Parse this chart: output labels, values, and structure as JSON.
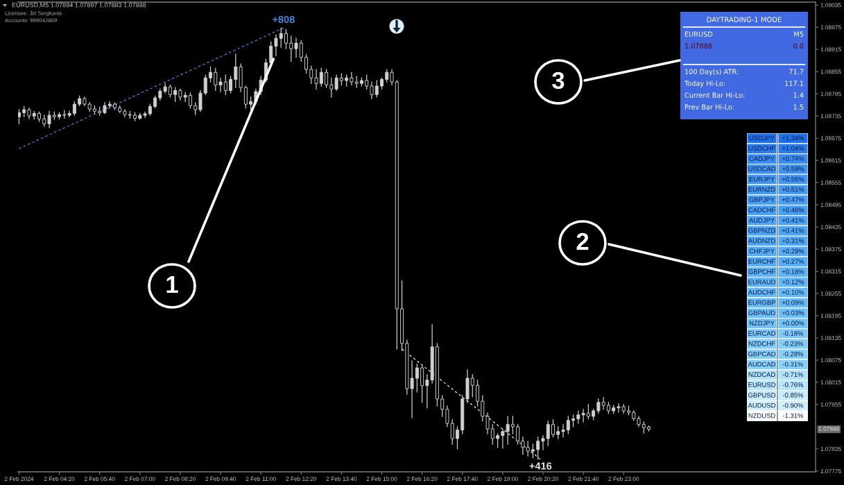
{
  "chart_data": [
    {
      "type": "candlestick",
      "title": "EURUSD,M5 1.07894 1.07897 1.07883 1.07888",
      "subtitle": "Licensee: Jiri Sergkanis\nAccounts: 999042869",
      "color": "#cfcfcf",
      "x": [
        "2024-02-02T03:00",
        "2024-02-02T03:10",
        "2024-02-02T03:20",
        "2024-02-02T03:30",
        "2024-02-02T03:40",
        "2024-02-02T03:50",
        "2024-02-02T04:00",
        "2024-02-02T04:10",
        "2024-02-02T04:20",
        "2024-02-02T04:30",
        "2024-02-02T04:40",
        "2024-02-02T04:50",
        "2024-02-02T05:00",
        "2024-02-02T05:10",
        "2024-02-02T05:20",
        "2024-02-02T05:30",
        "2024-02-02T05:40",
        "2024-02-02T05:50",
        "2024-02-02T06:00",
        "2024-02-02T06:10",
        "2024-02-02T06:20",
        "2024-02-02T06:30",
        "2024-02-02T06:40",
        "2024-02-02T06:50",
        "2024-02-02T07:00",
        "2024-02-02T07:10",
        "2024-02-02T07:20",
        "2024-02-02T07:30",
        "2024-02-02T07:40",
        "2024-02-02T07:50",
        "2024-02-02T08:00",
        "2024-02-02T08:10",
        "2024-02-02T08:20",
        "2024-02-02T08:30",
        "2024-02-02T08:40",
        "2024-02-02T08:50",
        "2024-02-02T09:00",
        "2024-02-02T09:10",
        "2024-02-02T09:20",
        "2024-02-02T09:30",
        "2024-02-02T09:40",
        "2024-02-02T09:50",
        "2024-02-02T10:00",
        "2024-02-02T10:10",
        "2024-02-02T10:20",
        "2024-02-02T10:30",
        "2024-02-02T10:40",
        "2024-02-02T10:50",
        "2024-02-02T11:00",
        "2024-02-02T11:10",
        "2024-02-02T11:20",
        "2024-02-02T11:30",
        "2024-02-02T11:40",
        "2024-02-02T11:50",
        "2024-02-02T12:00",
        "2024-02-02T12:10",
        "2024-02-02T12:20",
        "2024-02-02T12:30",
        "2024-02-02T12:40",
        "2024-02-02T12:50",
        "2024-02-02T13:00",
        "2024-02-02T13:10",
        "2024-02-02T13:20",
        "2024-02-02T13:30",
        "2024-02-02T13:40",
        "2024-02-02T13:50",
        "2024-02-02T14:00",
        "2024-02-02T14:10",
        "2024-02-02T14:20",
        "2024-02-02T14:30",
        "2024-02-02T14:40",
        "2024-02-02T14:50",
        "2024-02-02T15:00",
        "2024-02-02T15:10",
        "2024-02-02T15:20",
        "2024-02-02T15:30",
        "2024-02-02T15:40",
        "2024-02-02T15:50",
        "2024-02-02T16:00",
        "2024-02-02T16:10",
        "2024-02-02T16:20",
        "2024-02-02T16:30",
        "2024-02-02T16:40",
        "2024-02-02T16:50",
        "2024-02-02T17:00",
        "2024-02-02T17:10",
        "2024-02-02T17:20",
        "2024-02-02T17:30",
        "2024-02-02T17:40",
        "2024-02-02T17:50",
        "2024-02-02T18:00",
        "2024-02-02T18:10",
        "2024-02-02T18:20",
        "2024-02-02T18:30",
        "2024-02-02T18:40",
        "2024-02-02T18:50",
        "2024-02-02T19:00",
        "2024-02-02T19:10",
        "2024-02-02T19:20",
        "2024-02-02T19:30",
        "2024-02-02T19:40",
        "2024-02-02T19:50",
        "2024-02-02T20:00",
        "2024-02-02T20:10",
        "2024-02-02T20:20",
        "2024-02-02T20:30",
        "2024-02-02T20:40",
        "2024-02-02T20:50",
        "2024-02-02T21:00",
        "2024-02-02T21:10",
        "2024-02-02T21:20",
        "2024-02-02T21:30",
        "2024-02-02T21:40",
        "2024-02-02T21:50",
        "2024-02-02T22:00",
        "2024-02-02T22:10",
        "2024-02-02T22:20",
        "2024-02-02T22:30",
        "2024-02-02T22:40",
        "2024-02-02T22:50",
        "2024-02-02T23:00",
        "2024-02-02T23:10",
        "2024-02-02T23:20",
        "2024-02-02T23:30",
        "2024-02-02T23:40",
        "2024-02-02T23:50"
      ],
      "ohlc": [
        [
          1.08733,
          1.08752,
          1.08714,
          1.08744
        ],
        [
          1.08744,
          1.08761,
          1.08733,
          1.08752
        ],
        [
          1.08752,
          1.08756,
          1.08727,
          1.08735
        ],
        [
          1.08735,
          1.08748,
          1.08726,
          1.08742
        ],
        [
          1.08742,
          1.08746,
          1.0872,
          1.08727
        ],
        [
          1.08727,
          1.08737,
          1.08707,
          1.08714
        ],
        [
          1.08714,
          1.08748,
          1.08703,
          1.08737
        ],
        [
          1.08737,
          1.08746,
          1.08726,
          1.08733
        ],
        [
          1.08733,
          1.08744,
          1.08727,
          1.08739
        ],
        [
          1.08739,
          1.0875,
          1.08729,
          1.08737
        ],
        [
          1.08737,
          1.08748,
          1.08733,
          1.08742
        ],
        [
          1.08742,
          1.08774,
          1.08737,
          1.08767
        ],
        [
          1.08767,
          1.08789,
          1.08763,
          1.08782
        ],
        [
          1.08782,
          1.08786,
          1.08763,
          1.08767
        ],
        [
          1.08767,
          1.08771,
          1.08748,
          1.08754
        ],
        [
          1.08754,
          1.08763,
          1.08741,
          1.08748
        ],
        [
          1.08748,
          1.08759,
          1.08737,
          1.08744
        ],
        [
          1.08744,
          1.08771,
          1.08741,
          1.08763
        ],
        [
          1.08763,
          1.08774,
          1.08756,
          1.08767
        ],
        [
          1.08767,
          1.08771,
          1.08752,
          1.08757
        ],
        [
          1.08757,
          1.08763,
          1.08744,
          1.08748
        ],
        [
          1.08748,
          1.08752,
          1.08733,
          1.08739
        ],
        [
          1.08739,
          1.08748,
          1.08729,
          1.08737
        ],
        [
          1.08737,
          1.08744,
          1.08722,
          1.08729
        ],
        [
          1.08729,
          1.08742,
          1.08726,
          1.08737
        ],
        [
          1.08737,
          1.08746,
          1.08731,
          1.08741
        ],
        [
          1.08741,
          1.08767,
          1.08737,
          1.08761
        ],
        [
          1.08761,
          1.08789,
          1.08757,
          1.08784
        ],
        [
          1.08784,
          1.08808,
          1.08778,
          1.08802
        ],
        [
          1.08802,
          1.08823,
          1.08797,
          1.08814
        ],
        [
          1.08814,
          1.08819,
          1.08786,
          1.08793
        ],
        [
          1.08793,
          1.08812,
          1.08774,
          1.08804
        ],
        [
          1.08804,
          1.08808,
          1.08778,
          1.08786
        ],
        [
          1.08786,
          1.08799,
          1.08774,
          1.08791
        ],
        [
          1.08791,
          1.08797,
          1.08756,
          1.08763
        ],
        [
          1.08763,
          1.08771,
          1.08739,
          1.08752
        ],
        [
          1.08752,
          1.08804,
          1.08748,
          1.08797
        ],
        [
          1.08797,
          1.08846,
          1.08793,
          1.08838
        ],
        [
          1.08838,
          1.08868,
          1.08827,
          1.08853
        ],
        [
          1.08853,
          1.08864,
          1.08804,
          1.08819
        ],
        [
          1.08819,
          1.08838,
          1.08801,
          1.08827
        ],
        [
          1.08827,
          1.08846,
          1.08793,
          1.08804
        ],
        [
          1.08804,
          1.08842,
          1.08797,
          1.08834
        ],
        [
          1.08834,
          1.08902,
          1.08812,
          1.08868
        ],
        [
          1.08868,
          1.08876,
          1.08801,
          1.08812
        ],
        [
          1.08812,
          1.08816,
          1.08756,
          1.08767
        ],
        [
          1.08767,
          1.08786,
          1.08748,
          1.08774
        ],
        [
          1.08774,
          1.08808,
          1.08767,
          1.08801
        ],
        [
          1.08801,
          1.08842,
          1.08793,
          1.08832
        ],
        [
          1.08832,
          1.08889,
          1.08827,
          1.08879
        ],
        [
          1.08879,
          1.08936,
          1.08876,
          1.08924
        ],
        [
          1.08924,
          1.08954,
          1.08898,
          1.08945
        ],
        [
          1.08945,
          1.08973,
          1.08921,
          1.08958
        ],
        [
          1.08958,
          1.08969,
          1.08917,
          1.08932
        ],
        [
          1.08932,
          1.08951,
          1.08883,
          1.08917
        ],
        [
          1.08917,
          1.08945,
          1.08894,
          1.08932
        ],
        [
          1.08932,
          1.08939,
          1.08883,
          1.08894
        ],
        [
          1.08894,
          1.08902,
          1.08851,
          1.08861
        ],
        [
          1.08861,
          1.0887,
          1.08823,
          1.08838
        ],
        [
          1.08838,
          1.08861,
          1.08808,
          1.08823
        ],
        [
          1.08823,
          1.08864,
          1.08816,
          1.08853
        ],
        [
          1.08853,
          1.08861,
          1.08812,
          1.08819
        ],
        [
          1.08819,
          1.08838,
          1.08786,
          1.08808
        ],
        [
          1.08808,
          1.08846,
          1.08804,
          1.08838
        ],
        [
          1.08838,
          1.08849,
          1.08819,
          1.08831
        ],
        [
          1.08831,
          1.08846,
          1.08816,
          1.08838
        ],
        [
          1.08838,
          1.08853,
          1.08819,
          1.08827
        ],
        [
          1.08827,
          1.08842,
          1.08812,
          1.08823
        ],
        [
          1.08823,
          1.08838,
          1.08816,
          1.08831
        ],
        [
          1.08831,
          1.08846,
          1.08808,
          1.08816
        ],
        [
          1.08816,
          1.08827,
          1.08782,
          1.08793
        ],
        [
          1.08793,
          1.08831,
          1.08786,
          1.08816
        ],
        [
          1.08816,
          1.08838,
          1.08808,
          1.08834
        ],
        [
          1.08834,
          1.08861,
          1.08827,
          1.08853
        ],
        [
          1.08853,
          1.08861,
          1.08819,
          1.08827
        ],
        [
          1.08827,
          1.08831,
          1.08105,
          1.08214
        ],
        [
          1.08214,
          1.08289,
          1.08101,
          1.0812
        ],
        [
          1.0812,
          1.08129,
          1.07983,
          1.07998
        ],
        [
          1.07998,
          1.08073,
          1.07919,
          1.08026
        ],
        [
          1.08026,
          1.08064,
          1.07989,
          1.08054
        ],
        [
          1.08054,
          1.08058,
          1.07961,
          1.08006
        ],
        [
          1.08006,
          1.08036,
          1.07946,
          1.08021
        ],
        [
          1.08021,
          1.08171,
          1.08013,
          1.08111
        ],
        [
          1.08111,
          1.0812,
          1.07951,
          1.0797
        ],
        [
          1.0797,
          1.07979,
          1.07923,
          1.07942
        ],
        [
          1.07942,
          1.07951,
          1.07895,
          1.07904
        ],
        [
          1.07904,
          1.07914,
          1.07848,
          1.07863
        ],
        [
          1.07863,
          1.07895,
          1.07835,
          1.07886
        ],
        [
          1.07886,
          1.07979,
          1.07876,
          1.0797
        ],
        [
          1.0797,
          1.08049,
          1.07961,
          1.08026
        ],
        [
          1.08026,
          1.08036,
          1.07976,
          1.08007
        ],
        [
          1.08007,
          1.08021,
          1.07951,
          1.07964
        ],
        [
          1.07964,
          1.07979,
          1.0791,
          1.07923
        ],
        [
          1.07923,
          1.07932,
          1.07876,
          1.07889
        ],
        [
          1.07889,
          1.07901,
          1.07848,
          1.07863
        ],
        [
          1.07863,
          1.07876,
          1.07839,
          1.07871
        ],
        [
          1.07871,
          1.07889,
          1.07837,
          1.07882
        ],
        [
          1.07882,
          1.07923,
          1.07848,
          1.07901
        ],
        [
          1.07901,
          1.07923,
          1.07876,
          1.07895
        ],
        [
          1.07895,
          1.07901,
          1.07848,
          1.07856
        ],
        [
          1.07856,
          1.07867,
          1.0782,
          1.07839
        ],
        [
          1.07839,
          1.07856,
          1.07816,
          1.07829
        ],
        [
          1.07829,
          1.07848,
          1.07811,
          1.07833
        ],
        [
          1.07833,
          1.07867,
          1.07807,
          1.07856
        ],
        [
          1.07856,
          1.07871,
          1.07833,
          1.07863
        ],
        [
          1.07863,
          1.0791,
          1.07844,
          1.07901
        ],
        [
          1.07901,
          1.07914,
          1.07867,
          1.07874
        ],
        [
          1.07874,
          1.07895,
          1.07863,
          1.07882
        ],
        [
          1.07882,
          1.07901,
          1.07867,
          1.07886
        ],
        [
          1.07886,
          1.07923,
          1.07876,
          1.07912
        ],
        [
          1.07912,
          1.07927,
          1.07895,
          1.07916
        ],
        [
          1.07916,
          1.07938,
          1.07904,
          1.07927
        ],
        [
          1.07927,
          1.07942,
          1.07908,
          1.07931
        ],
        [
          1.07931,
          1.07955,
          1.07916,
          1.07923
        ],
        [
          1.07923,
          1.07942,
          1.07914,
          1.07938
        ],
        [
          1.07938,
          1.0797,
          1.07931,
          1.07961
        ],
        [
          1.07961,
          1.07974,
          1.07942,
          1.07953
        ],
        [
          1.07953,
          1.07961,
          1.07931,
          1.07938
        ],
        [
          1.07938,
          1.07953,
          1.07931,
          1.07946
        ],
        [
          1.07946,
          1.07957,
          1.07934,
          1.07949
        ],
        [
          1.07949,
          1.07955,
          1.07931,
          1.07938
        ],
        [
          1.07938,
          1.07951,
          1.07927,
          1.07934
        ],
        [
          1.07934,
          1.07938,
          1.07912,
          1.07917
        ],
        [
          1.07917,
          1.07923,
          1.07895,
          1.07901
        ],
        [
          1.07901,
          1.07908,
          1.07878,
          1.07893
        ],
        [
          1.07894,
          1.07897,
          1.07883,
          1.07888
        ]
      ],
      "series": [
        {
          "type": "line",
          "x": [
            "2024-02-02T03:00",
            "2024-02-02T11:45"
          ],
          "values": [
            1.08647,
            1.08973
          ],
          "color": "#3b8bdc",
          "line_style": "dashed"
        },
        {
          "type": "line",
          "x": [
            "2024-02-02T15:40",
            "2024-02-02T20:15"
          ],
          "values": [
            1.08105,
            1.07807
          ],
          "color": "#e6e6e6",
          "line_style": "dashed"
        }
      ],
      "xlim": [
        "2024-02-02T02:58",
        "2024-02-03T05:21"
      ],
      "xticks": [
        {
          "value": "2024-02-02T03:00",
          "label": "2 Feb 2024"
        },
        {
          "value": "2024-02-02T04:20",
          "label": "2 Feb 04:20"
        },
        {
          "value": "2024-02-02T05:40",
          "label": "2 Feb 05:40"
        },
        {
          "value": "2024-02-02T07:00",
          "label": "2 Feb 07:00"
        },
        {
          "value": "2024-02-02T08:20",
          "label": "2 Feb 08:20"
        },
        {
          "value": "2024-02-02T09:40",
          "label": "2 Feb 09:40"
        },
        {
          "value": "2024-02-02T11:00",
          "label": "2 Feb 11:00"
        },
        {
          "value": "2024-02-02T12:20",
          "label": "2 Feb 12:20"
        },
        {
          "value": "2024-02-02T13:40",
          "label": "2 Feb 13:40"
        },
        {
          "value": "2024-02-02T15:00",
          "label": "2 Feb 15:00"
        },
        {
          "value": "2024-02-02T16:20",
          "label": "2 Feb 16:20"
        },
        {
          "value": "2024-02-02T17:40",
          "label": "2 Feb 17:40"
        },
        {
          "value": "2024-02-02T19:00",
          "label": "2 Feb 19:00"
        },
        {
          "value": "2024-02-02T20:20",
          "label": "2 Feb 20:20"
        },
        {
          "value": "2024-02-02T21:40",
          "label": "2 Feb 21:40"
        },
        {
          "value": "2024-02-02T23:00",
          "label": "2 Feb 23:00"
        }
      ],
      "ylim": [
        1.07773,
        1.09043
      ],
      "yticks": [
        1.09035,
        1.08975,
        1.08915,
        1.08855,
        1.08795,
        1.08735,
        1.08675,
        1.08615,
        1.08555,
        1.08495,
        1.08435,
        1.08375,
        1.08315,
        1.08255,
        1.08195,
        1.08135,
        1.08075,
        1.08015,
        1.07955,
        1.07835,
        1.07775
      ],
      "annotations": [
        {
          "text": "+808",
          "x": "2024-02-02T11:45",
          "y": 1.08973
        },
        {
          "text": "+416",
          "x": "2024-02-02T20:15",
          "y": 1.07807
        },
        {
          "text": "1.07888",
          "y": 1.07888
        },
        {
          "text": "1",
          "x": "2024-02-02T11:25",
          "y": 1.08889
        },
        "2",
        "3"
      ]
    },
    {
      "type": "other",
      "title": "DAYTRADING-1 MODE",
      "color": "#4169e1",
      "annotations": [
        "EURUSD",
        "M5",
        "1.07888",
        "0.0",
        "100 Day(s) ATR:",
        "71.7",
        "Today Hi-Lo:",
        "117.1",
        "Current Bar Hi-Lo:",
        "1.4",
        "Prev Bar Hi-Lo:",
        "1.5"
      ],
      "colors": [
        "#ffffff",
        "#ffffff",
        "#600016",
        "#600016",
        "#ffffff",
        "#ffffff",
        "#ffffff",
        "#ffffff",
        "#ffffff",
        "#ffffff",
        "#ffffff",
        "#ffffff"
      ]
    },
    {
      "type": "other",
      "categories": [
        "USDJPY",
        "USDCHF",
        "CADJPY",
        "USDCAD",
        "EURJPY",
        "EURNZD",
        "GBPJPY",
        "CADCHF",
        "AUDJPY",
        "GBPNZD",
        "AUDNZD",
        "CHFJPY",
        "EURCHF",
        "GBPCHF",
        "EURAUD",
        "AUDCHF",
        "EURGBP",
        "GBPAUD",
        "NZDJPY",
        "EURCAD",
        "NZDCHF",
        "GBPCAD",
        "AUDCAD",
        "NZDCAD",
        "EURUSD",
        "GBPUSD",
        "AUDUSD",
        "NZDUSD"
      ],
      "value_labels": [
        "+1.34%",
        "+1.04%",
        "+0.74%",
        "+0.59%",
        "+0.56%",
        "+0.51%",
        "+0.47%",
        "+0.46%",
        "+0.41%",
        "+0.41%",
        "+0.31%",
        "+0.29%",
        "+0.27%",
        "+0.18%",
        "+0.12%",
        "+0.10%",
        "+0.09%",
        "+0.03%",
        "+0.00%",
        "-0.18%",
        "-0.23%",
        "-0.28%",
        "-0.31%",
        "-0.71%",
        "-0.76%",
        "-0.85%",
        "-0.90%",
        "-1.31%"
      ],
      "colors": [
        "#1f6fe8",
        "#2a7cec",
        "#3a8cf0",
        "#3f93f1",
        "#4197f2",
        "#459bf2",
        "#489ff3",
        "#48a0f3",
        "#4ca4f4",
        "#4ca4f4",
        "#52aaf4",
        "#54acf4",
        "#56aef5",
        "#5cb3f5",
        "#62b8f6",
        "#64baf6",
        "#66bbf6",
        "#6cc0f7",
        "#70c3f7",
        "#7ec9f8",
        "#82ccf8",
        "#86cff8",
        "#8ad1f9",
        "#b0e2fb",
        "#b8e6fb",
        "#c8ecfc",
        "#d0f0fd",
        "#ffffff"
      ]
    }
  ]
}
